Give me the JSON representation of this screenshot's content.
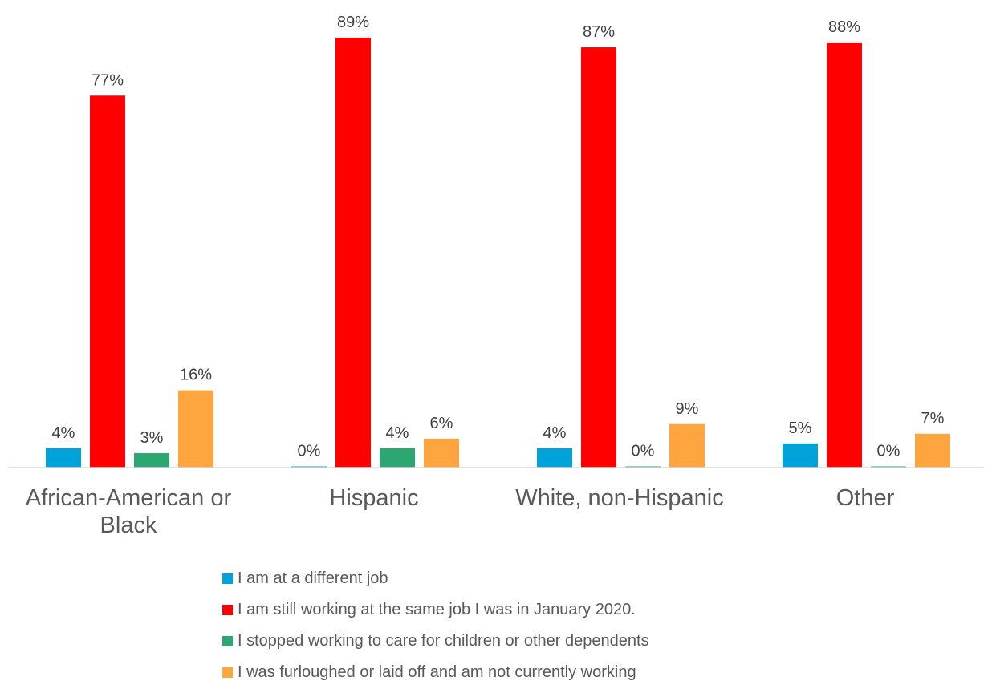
{
  "chart_data": {
    "type": "bar",
    "categories": [
      "African-American or Black",
      "Hispanic",
      "White, non-Hispanic",
      "Other"
    ],
    "series": [
      {
        "name": "I am at a different job",
        "color": "#00a3d9",
        "values": [
          4,
          0,
          4,
          5
        ],
        "labels": [
          "4%",
          "0%",
          "4%",
          "5%"
        ]
      },
      {
        "name": "I am still working at the same job I was in January 2020.",
        "color": "#ff0000",
        "values": [
          77,
          89,
          87,
          88
        ],
        "labels": [
          "77%",
          "89%",
          "87%",
          "88%"
        ]
      },
      {
        "name": "I stopped working to care for children or other dependents",
        "color": "#2ca772",
        "values": [
          3,
          4,
          0,
          0
        ],
        "labels": [
          "3%",
          "4%",
          "0%",
          "0%"
        ]
      },
      {
        "name": "I was furloughed or laid off and am not currently working",
        "color": "#ffa53f",
        "values": [
          16,
          6,
          9,
          7
        ],
        "labels": [
          "16%",
          "6%",
          "9%",
          "7%"
        ]
      }
    ],
    "ylim": [
      0,
      89
    ],
    "grid": false,
    "legend_position": "bottom",
    "title": "",
    "xlabel": "",
    "ylabel": ""
  }
}
